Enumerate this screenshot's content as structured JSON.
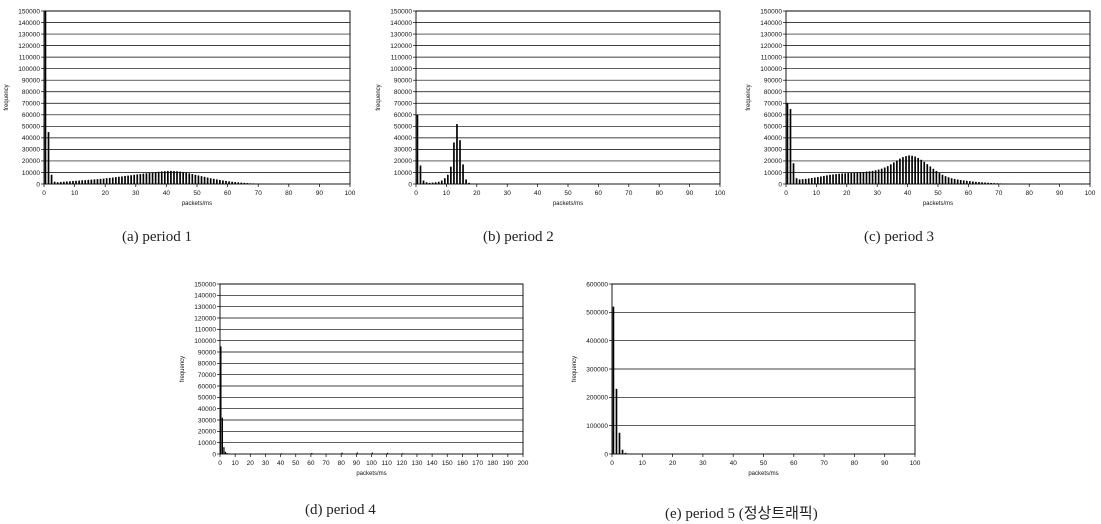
{
  "charts": [
    {
      "id": "a",
      "caption": "(a) period 1"
    },
    {
      "id": "b",
      "caption": "(b) period 2"
    },
    {
      "id": "c",
      "caption": "(c) period 3"
    },
    {
      "id": "d",
      "caption": "(d) period 4"
    },
    {
      "id": "e",
      "caption": "(e) period 5 (정상트래픽)"
    }
  ],
  "chart_data": [
    {
      "type": "bar",
      "xlabel": "packets/ms",
      "ylabel": "frequency",
      "xlim": [
        0,
        100
      ],
      "ylim": [
        0,
        150000
      ],
      "x_ticks": [
        0,
        10,
        20,
        30,
        40,
        50,
        60,
        70,
        80,
        90,
        100
      ],
      "y_ticks": [
        0,
        10000,
        20000,
        30000,
        40000,
        50000,
        60000,
        70000,
        80000,
        90000,
        100000,
        110000,
        120000,
        130000,
        140000,
        150000
      ],
      "grid": "horizontal",
      "series": [
        {
          "x": [
            0,
            1,
            2,
            3,
            4,
            5,
            6,
            7,
            8,
            9,
            10,
            11,
            12,
            13,
            14,
            15,
            16,
            17,
            18,
            19,
            20,
            21,
            22,
            23,
            24,
            25,
            26,
            27,
            28,
            29,
            30,
            31,
            32,
            33,
            34,
            35,
            36,
            37,
            38,
            39,
            40,
            41,
            42,
            43,
            44,
            45,
            46,
            47,
            48,
            49,
            50,
            51,
            52,
            53,
            54,
            55,
            56,
            57,
            58,
            59,
            60,
            61,
            62,
            63,
            64,
            65,
            66,
            67,
            68,
            69,
            70,
            71,
            72,
            73,
            74,
            75
          ],
          "values": [
            150000,
            45000,
            8000,
            2000,
            1500,
            1800,
            2000,
            2200,
            2400,
            2600,
            2800,
            3000,
            3200,
            3400,
            3600,
            3800,
            4000,
            4200,
            4400,
            4700,
            5000,
            5300,
            5600,
            6000,
            6300,
            6600,
            7000,
            7300,
            7600,
            8000,
            8300,
            8600,
            9000,
            9300,
            9600,
            10000,
            10300,
            10600,
            10900,
            11100,
            11300,
            11400,
            11200,
            11000,
            10700,
            10300,
            9800,
            9200,
            8600,
            8000,
            7400,
            6800,
            6200,
            5600,
            5000,
            4500,
            4000,
            3500,
            3100,
            2700,
            2300,
            2000,
            1700,
            1400,
            1200,
            1000,
            800,
            600,
            500,
            400,
            300,
            200,
            150,
            100,
            60,
            30
          ]
        }
      ]
    },
    {
      "type": "bar",
      "xlabel": "packets/ms",
      "ylabel": "frequency",
      "xlim": [
        0,
        100
      ],
      "ylim": [
        0,
        150000
      ],
      "x_ticks": [
        0,
        10,
        20,
        30,
        40,
        50,
        60,
        70,
        80,
        90,
        100
      ],
      "y_ticks": [
        0,
        10000,
        20000,
        30000,
        40000,
        50000,
        60000,
        70000,
        80000,
        90000,
        100000,
        110000,
        120000,
        130000,
        140000,
        150000
      ],
      "grid": "horizontal",
      "series": [
        {
          "x": [
            0,
            1,
            2,
            3,
            4,
            5,
            6,
            7,
            8,
            9,
            10,
            11,
            12,
            13,
            14,
            15,
            16,
            17,
            18,
            19,
            20
          ],
          "values": [
            60000,
            16000,
            3000,
            1500,
            1000,
            1200,
            1500,
            2000,
            3000,
            5000,
            8000,
            15000,
            36000,
            52000,
            38000,
            17000,
            4000,
            1000,
            400,
            150,
            50
          ]
        }
      ]
    },
    {
      "type": "bar",
      "xlabel": "packets/ms",
      "ylabel": "frequency",
      "xlim": [
        0,
        100
      ],
      "ylim": [
        0,
        150000
      ],
      "x_ticks": [
        0,
        10,
        20,
        30,
        40,
        50,
        60,
        70,
        80,
        90,
        100
      ],
      "y_ticks": [
        0,
        10000,
        20000,
        30000,
        40000,
        50000,
        60000,
        70000,
        80000,
        90000,
        100000,
        110000,
        120000,
        130000,
        140000,
        150000
      ],
      "grid": "horizontal",
      "series": [
        {
          "x": [
            0,
            1,
            2,
            3,
            4,
            5,
            6,
            7,
            8,
            9,
            10,
            11,
            12,
            13,
            14,
            15,
            16,
            17,
            18,
            19,
            20,
            21,
            22,
            23,
            24,
            25,
            26,
            27,
            28,
            29,
            30,
            31,
            32,
            33,
            34,
            35,
            36,
            37,
            38,
            39,
            40,
            41,
            42,
            43,
            44,
            45,
            46,
            47,
            48,
            49,
            50,
            51,
            52,
            53,
            54,
            55,
            56,
            57,
            58,
            59,
            60,
            61,
            62,
            63,
            64,
            65,
            66,
            67,
            68,
            69,
            70,
            71,
            72,
            73,
            74,
            75,
            76,
            77,
            78,
            79,
            80
          ],
          "values": [
            70000,
            65000,
            18000,
            5000,
            4000,
            4200,
            4500,
            4800,
            5200,
            5600,
            6000,
            6500,
            7000,
            7500,
            8000,
            8300,
            8600,
            8900,
            9100,
            9300,
            9500,
            9700,
            9900,
            10000,
            10200,
            10400,
            10700,
            11000,
            11400,
            11900,
            12500,
            13300,
            14300,
            15500,
            17000,
            18700,
            20400,
            22000,
            23300,
            24200,
            24800,
            24500,
            23800,
            22600,
            21000,
            19200,
            17200,
            15200,
            13200,
            11300,
            9500,
            8000,
            6800,
            5800,
            5000,
            4400,
            3900,
            3500,
            3100,
            2800,
            2500,
            2200,
            1900,
            1700,
            1500,
            1300,
            1100,
            900,
            750,
            600,
            500,
            400,
            320,
            250,
            200,
            150,
            110,
            80,
            50,
            30,
            20
          ]
        }
      ]
    },
    {
      "type": "bar",
      "xlabel": "packets/ms",
      "ylabel": "frequency",
      "xlim": [
        0,
        200
      ],
      "ylim": [
        0,
        150000
      ],
      "x_ticks": [
        0,
        10,
        20,
        30,
        40,
        50,
        60,
        70,
        80,
        90,
        100,
        110,
        120,
        130,
        140,
        150,
        160,
        170,
        180,
        190,
        200
      ],
      "y_ticks": [
        0,
        10000,
        20000,
        30000,
        40000,
        50000,
        60000,
        70000,
        80000,
        90000,
        100000,
        110000,
        120000,
        130000,
        140000,
        150000
      ],
      "grid": "horizontal",
      "series": [
        {
          "x": [
            0,
            1,
            2,
            3,
            4,
            5,
            6,
            8,
            10,
            20,
            40,
            60,
            80,
            90,
            100,
            110,
            120,
            130,
            140,
            160,
            180
          ],
          "values": [
            95000,
            32000,
            6000,
            2000,
            800,
            400,
            200,
            150,
            120,
            300,
            600,
            900,
            1200,
            1300,
            1200,
            1000,
            700,
            400,
            200,
            80,
            20
          ]
        }
      ]
    },
    {
      "type": "bar",
      "xlabel": "packets/ms",
      "ylabel": "frequency",
      "xlim": [
        0,
        100
      ],
      "ylim": [
        0,
        600000
      ],
      "x_ticks": [
        0,
        10,
        20,
        30,
        40,
        50,
        60,
        70,
        80,
        90,
        100
      ],
      "y_ticks": [
        0,
        100000,
        200000,
        300000,
        400000,
        500000,
        600000
      ],
      "grid": "horizontal",
      "series": [
        {
          "x": [
            0,
            1,
            2,
            3,
            4,
            5,
            6,
            7
          ],
          "values": [
            520000,
            230000,
            75000,
            15000,
            4000,
            1000,
            300,
            100
          ]
        }
      ]
    }
  ]
}
